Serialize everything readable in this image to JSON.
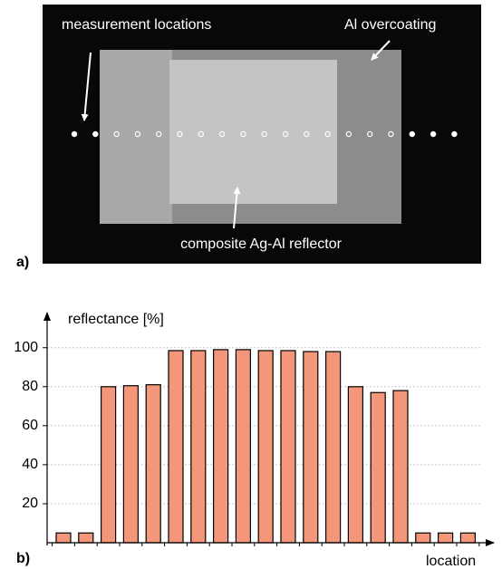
{
  "photo": {
    "panel_label": "a)",
    "annotations": [
      "measurement locations",
      "Al overcoating",
      "composite Ag-Al reflector"
    ]
  },
  "chart_data": {
    "type": "bar",
    "panel_label": "b)",
    "y_label": "reflectance [%]",
    "x_label": "location",
    "categories": [
      null,
      null,
      null,
      null,
      null,
      null,
      null,
      null,
      null,
      null,
      null,
      null,
      null,
      null,
      null,
      null,
      null,
      null,
      null
    ],
    "values": [
      5,
      5,
      80,
      80.5,
      81,
      98.5,
      98.5,
      99,
      99,
      98.5,
      98.5,
      98,
      98,
      80,
      77,
      78,
      5,
      5,
      5
    ],
    "color": "#f4967a",
    "ylim": [
      0,
      118
    ],
    "yticks": [
      20,
      40,
      60,
      80,
      100
    ],
    "grid": true
  }
}
